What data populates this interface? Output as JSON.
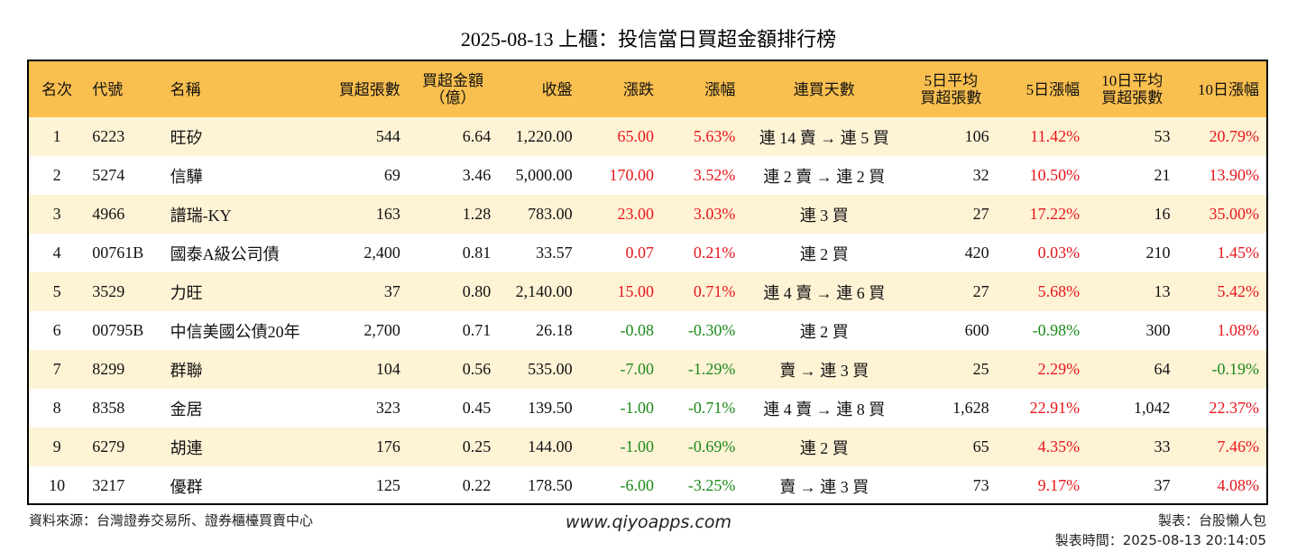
{
  "title": "2025-08-13 上櫃：投信當日買超金額排行榜",
  "columns": {
    "rank": "名次",
    "code": "代號",
    "name": "名稱",
    "buy_lots": "買超張數",
    "buy_amount_1": "買超金額",
    "buy_amount_2": "（億）",
    "close": "收盤",
    "change": "漲跌",
    "pct": "漲幅",
    "streak": "連買天數",
    "avg5_1": "5日平均",
    "avg5_2": "買超張數",
    "pct5": "5日漲幅",
    "avg10_1": "10日平均",
    "avg10_2": "買超張數",
    "pct10": "10日漲幅"
  },
  "rows": [
    {
      "rank": "1",
      "code": "6223",
      "name": "旺矽",
      "buy_lots": "544",
      "amount": "6.64",
      "close": "1,220.00",
      "change": "65.00",
      "pct": "5.63%",
      "streak": "連 14 賣 → 連 5 買",
      "avg5": "106",
      "pct5": "11.42%",
      "avg10": "53",
      "pct10": "20.79%"
    },
    {
      "rank": "2",
      "code": "5274",
      "name": "信驊",
      "buy_lots": "69",
      "amount": "3.46",
      "close": "5,000.00",
      "change": "170.00",
      "pct": "3.52%",
      "streak": "連 2 賣 → 連 2 買",
      "avg5": "32",
      "pct5": "10.50%",
      "avg10": "21",
      "pct10": "13.90%"
    },
    {
      "rank": "3",
      "code": "4966",
      "name": "譜瑞-KY",
      "buy_lots": "163",
      "amount": "1.28",
      "close": "783.00",
      "change": "23.00",
      "pct": "3.03%",
      "streak": "連 3 買",
      "avg5": "27",
      "pct5": "17.22%",
      "avg10": "16",
      "pct10": "35.00%"
    },
    {
      "rank": "4",
      "code": "00761B",
      "name": "國泰A級公司債",
      "buy_lots": "2,400",
      "amount": "0.81",
      "close": "33.57",
      "change": "0.07",
      "pct": "0.21%",
      "streak": "連 2 買",
      "avg5": "420",
      "pct5": "0.03%",
      "avg10": "210",
      "pct10": "1.45%"
    },
    {
      "rank": "5",
      "code": "3529",
      "name": "力旺",
      "buy_lots": "37",
      "amount": "0.80",
      "close": "2,140.00",
      "change": "15.00",
      "pct": "0.71%",
      "streak": "連 4 賣 → 連 6 買",
      "avg5": "27",
      "pct5": "5.68%",
      "avg10": "13",
      "pct10": "5.42%"
    },
    {
      "rank": "6",
      "code": "00795B",
      "name": "中信美國公債20年",
      "buy_lots": "2,700",
      "amount": "0.71",
      "close": "26.18",
      "change": "-0.08",
      "pct": "-0.30%",
      "streak": "連 2 買",
      "avg5": "600",
      "pct5": "-0.98%",
      "avg10": "300",
      "pct10": "1.08%"
    },
    {
      "rank": "7",
      "code": "8299",
      "name": "群聯",
      "buy_lots": "104",
      "amount": "0.56",
      "close": "535.00",
      "change": "-7.00",
      "pct": "-1.29%",
      "streak": "賣 → 連 3 買",
      "avg5": "25",
      "pct5": "2.29%",
      "avg10": "64",
      "pct10": "-0.19%"
    },
    {
      "rank": "8",
      "code": "8358",
      "name": "金居",
      "buy_lots": "323",
      "amount": "0.45",
      "close": "139.50",
      "change": "-1.00",
      "pct": "-0.71%",
      "streak": "連 4 賣 → 連 8 買",
      "avg5": "1,628",
      "pct5": "22.91%",
      "avg10": "1,042",
      "pct10": "22.37%"
    },
    {
      "rank": "9",
      "code": "6279",
      "name": "胡連",
      "buy_lots": "176",
      "amount": "0.25",
      "close": "144.00",
      "change": "-1.00",
      "pct": "-0.69%",
      "streak": "連 2 買",
      "avg5": "65",
      "pct5": "4.35%",
      "avg10": "33",
      "pct10": "7.46%"
    },
    {
      "rank": "10",
      "code": "3217",
      "name": "優群",
      "buy_lots": "125",
      "amount": "0.22",
      "close": "178.50",
      "change": "-6.00",
      "pct": "-3.25%",
      "streak": "賣 → 連 3 買",
      "avg5": "73",
      "pct5": "9.17%",
      "avg10": "37",
      "pct10": "4.08%"
    }
  ],
  "colors": {
    "header_bg": "#f9bf4f",
    "stripe_bg": "#fff3d6",
    "positive": "#e8161b",
    "negative": "#1a8a1a"
  },
  "footer": {
    "source": "資料來源：台灣證券交易所、證券櫃檯買賣中心",
    "website": "www.qiyoapps.com",
    "maker": "製表：台股懶人包",
    "time": "製表時間：2025-08-13 20:14:05"
  }
}
